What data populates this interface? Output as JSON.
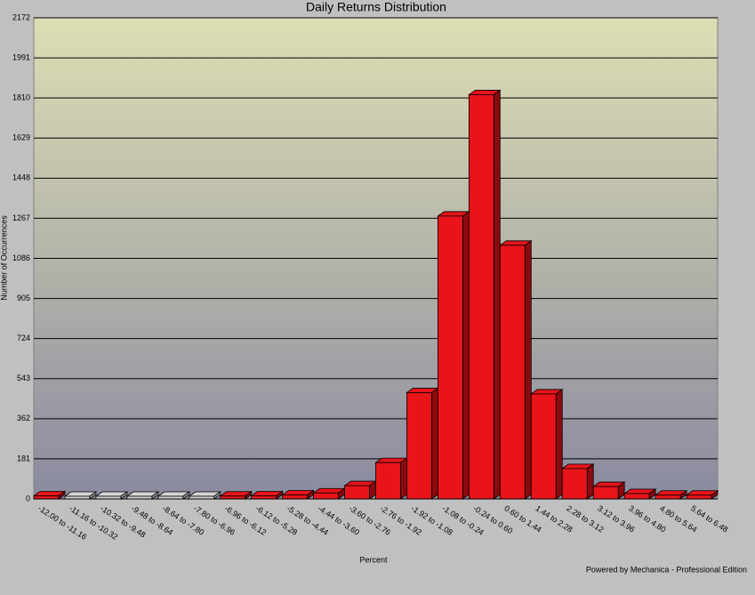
{
  "chart_data": {
    "type": "bar",
    "title": "Daily Returns Distribution",
    "x_label": "Percent",
    "y_label": "Number of Occurrences",
    "footer": "Powered by Mechanica - Professional Edition",
    "categories": [
      "-12.00 to -11.16",
      "-11.16 to -10.32",
      "-10.32 to -9.48",
      "-9.48 to -8.64",
      "-8.64 to -7.80",
      "-7.80 to -6.96",
      "-6.96 to -6.12",
      "-6.12 to -5.28",
      "-5.28 to -4.44",
      "-4.44 to -3.60",
      "-3.60 to -2.76",
      "-2.76 to -1.92",
      "-1.92 to -1.08",
      "-1.08 to -0.24",
      "-0.24 to 0.60",
      "0.60 to 1.44",
      "1.44 to 2.28",
      "2.28 to 3.12",
      "3.12 to 3.96",
      "3.96 to 4.80",
      "4.80 to 5.64",
      "5.64 to 6.48"
    ],
    "values": [
      2,
      0,
      0,
      0,
      0,
      0,
      1,
      2,
      6,
      15,
      48,
      152,
      468,
      1265,
      1813,
      1133,
      462,
      125,
      44,
      12,
      5,
      5
    ],
    "color": "#e8141a",
    "zero_color": "#d4d4d4",
    "ylim": [
      0,
      2172
    ],
    "yticks": [
      0,
      181,
      362,
      543,
      724,
      905,
      1086,
      1267,
      1448,
      1629,
      1810,
      1991,
      2172
    ],
    "grid": true
  }
}
